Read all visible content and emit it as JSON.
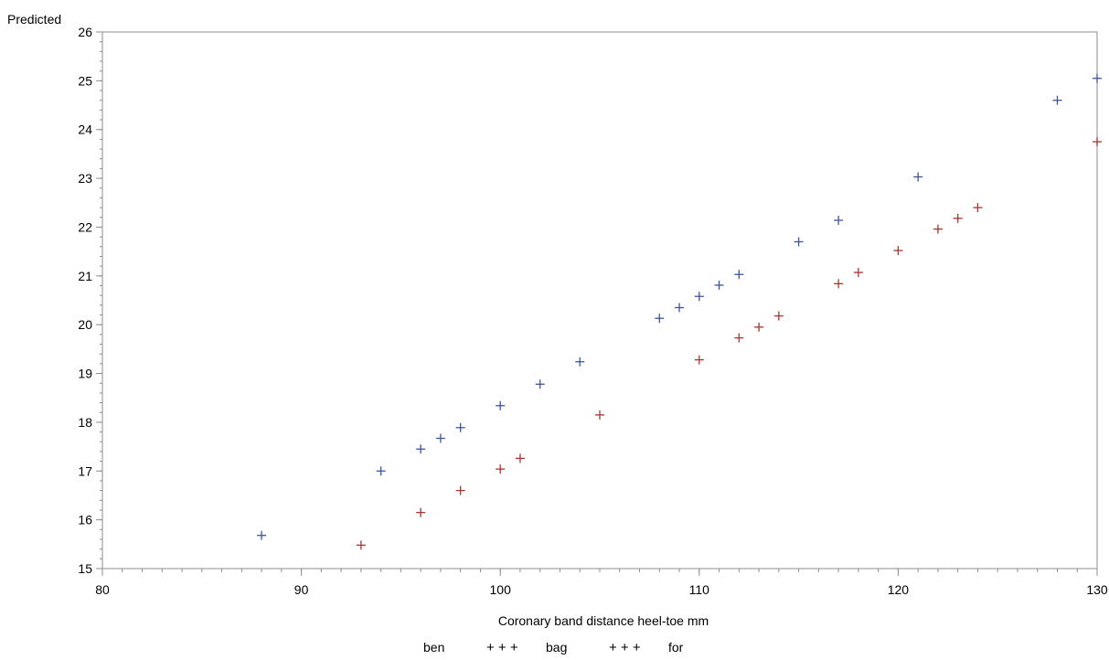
{
  "chart_data": {
    "type": "scatter",
    "title": "",
    "xlabel": "Coronary band distance heel-toe mm",
    "ylabel": "Predicted",
    "xlim": [
      80,
      130
    ],
    "ylim": [
      15,
      26
    ],
    "x_ticks": [
      80,
      90,
      100,
      110,
      120,
      130
    ],
    "y_ticks": [
      15,
      16,
      17,
      18,
      19,
      20,
      21,
      22,
      23,
      24,
      25,
      26
    ],
    "x_minor_step": 1,
    "y_minor_step": 0.2,
    "grid": false,
    "marker": "+",
    "legend": {
      "title": "ben",
      "placement": "bottom-center",
      "entries": [
        {
          "label": "bag",
          "symbol": "+ + +"
        },
        {
          "label": "for",
          "symbol": "+ + +"
        }
      ]
    },
    "series": [
      {
        "name": "bag",
        "color": "#3d55a0",
        "points": [
          [
            88,
            15.68
          ],
          [
            94,
            17.0
          ],
          [
            96,
            17.45
          ],
          [
            97,
            17.67
          ],
          [
            98,
            17.89
          ],
          [
            100,
            18.34
          ],
          [
            102,
            18.78
          ],
          [
            104,
            19.24
          ],
          [
            108,
            20.13
          ],
          [
            109,
            20.35
          ],
          [
            110,
            20.58
          ],
          [
            111,
            20.81
          ],
          [
            112,
            21.03
          ],
          [
            115,
            21.7
          ],
          [
            117,
            22.14
          ],
          [
            121,
            23.03
          ],
          [
            128,
            24.6
          ],
          [
            130,
            25.05
          ]
        ]
      },
      {
        "name": "for",
        "color": "#a8352e",
        "points": [
          [
            93,
            15.48
          ],
          [
            96,
            16.15
          ],
          [
            98,
            16.6
          ],
          [
            100,
            17.04
          ],
          [
            101,
            17.26
          ],
          [
            105,
            18.15
          ],
          [
            110,
            19.28
          ],
          [
            112,
            19.73
          ],
          [
            113,
            19.95
          ],
          [
            114,
            20.18
          ],
          [
            117,
            20.84
          ],
          [
            118,
            21.07
          ],
          [
            120,
            21.52
          ],
          [
            122,
            21.96
          ],
          [
            123,
            22.18
          ],
          [
            124,
            22.4
          ],
          [
            130,
            23.75
          ]
        ]
      }
    ]
  }
}
